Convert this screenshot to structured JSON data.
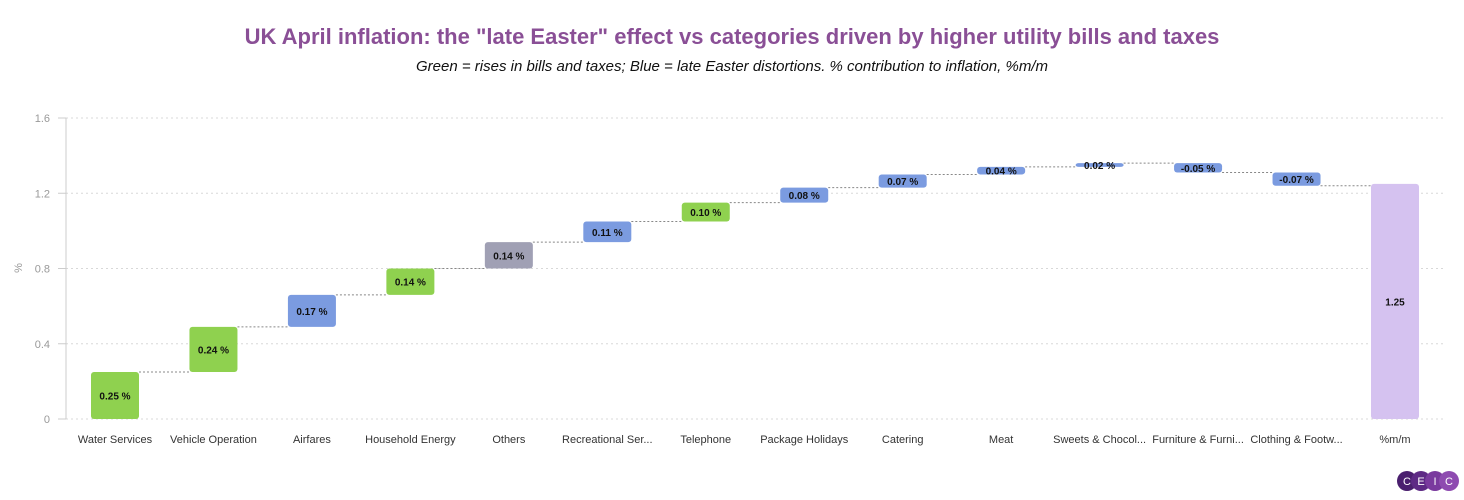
{
  "chart_data": {
    "type": "waterfall",
    "title": "UK April inflation: the \"late Easter\" effect vs categories driven by higher utility bills and taxes",
    "subtitle": "Green = rises in bills and taxes; Blue = late Easter distortions. % contribution to inflation, %m/m",
    "ylabel": "%",
    "xlabel": "",
    "ylim": [
      0,
      1.6
    ],
    "yticks": [
      "0",
      "0.4",
      "0.8",
      "1.2",
      "1.6"
    ],
    "ytick_values": [
      0,
      0.4,
      0.8,
      1.2,
      1.6
    ],
    "grid": true,
    "categories": [
      "Water Services",
      "Vehicle Operation",
      "Airfares",
      "Household Energy",
      "Others",
      "Recreational Ser...",
      "Telephone",
      "Package Holidays",
      "Catering",
      "Meat",
      "Sweets & Chocol...",
      "Furniture & Furni...",
      "Clothing & Footw...",
      "%m/m"
    ],
    "values": [
      0.25,
      0.24,
      0.17,
      0.14,
      0.14,
      0.11,
      0.1,
      0.08,
      0.07,
      0.04,
      0.02,
      -0.05,
      -0.07,
      1.25
    ],
    "labels": [
      "0.25 %",
      "0.24 %",
      "0.17 %",
      "0.14 %",
      "0.14 %",
      "0.11 %",
      "0.10 %",
      "0.08 %",
      "0.07 %",
      "0.04 %",
      "0.02 %",
      "-0.05 %",
      "-0.07 %",
      "1.25"
    ],
    "groups": [
      "bills_taxes",
      "bills_taxes",
      "easter",
      "bills_taxes",
      "other",
      "easter",
      "bills_taxes",
      "easter",
      "easter",
      "easter",
      "easter",
      "easter",
      "easter",
      "total"
    ],
    "colors": {
      "bills_taxes": "#8fd14f",
      "easter": "#7b9be0",
      "other": "#a0a0b4",
      "total": "#d5c2f0",
      "title": "#8a4f96"
    }
  },
  "branding": {
    "logo_letters": [
      "C",
      "E",
      "I",
      "C"
    ]
  }
}
